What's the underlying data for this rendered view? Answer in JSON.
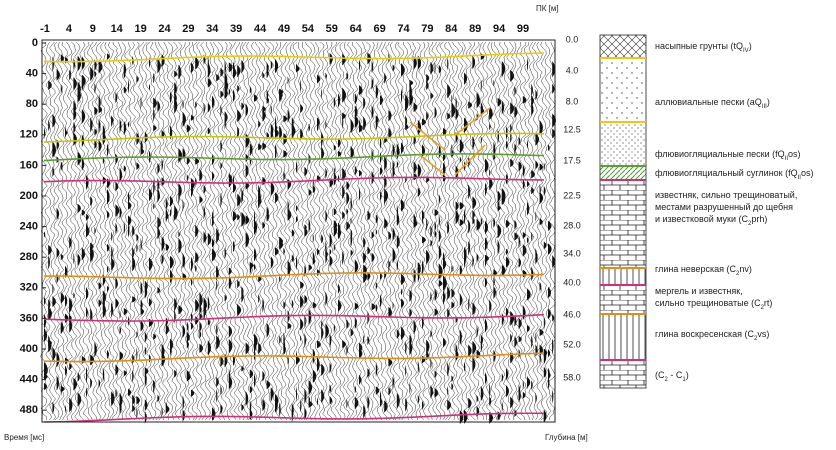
{
  "section": {
    "top_axis": {
      "label": "ПК [м]",
      "ticks": [
        "-1",
        "4",
        "9",
        "14",
        "19",
        "24",
        "29",
        "34",
        "39",
        "44",
        "49",
        "54",
        "59",
        "64",
        "69",
        "74",
        "79",
        "84",
        "89",
        "94",
        "99"
      ]
    },
    "time_axis": {
      "label": "Время [мс]",
      "ticks": [
        "0",
        "40",
        "80",
        "120",
        "160",
        "200",
        "240",
        "280",
        "320",
        "360",
        "400",
        "440",
        "480"
      ]
    },
    "depth_axis": {
      "label": "Глубина [м]",
      "ticks": [
        "0.0",
        "4.0",
        "8.0",
        "12.5",
        "17.5",
        "22.5",
        "28.0",
        "34.0",
        "40.0",
        "46.0",
        "52.0",
        "58.0"
      ]
    }
  },
  "legend": [
    {
      "parts": [
        {
          "t": "насыпные грунты (tQ"
        },
        {
          "sub": "IV"
        },
        {
          "t": ")"
        }
      ]
    },
    {
      "parts": [
        {
          "t": "аллювиальные пески  (aQ"
        },
        {
          "sub": "III"
        },
        {
          "t": ")"
        }
      ]
    },
    {
      "parts": [
        {
          "t": "флювиогляциальные пески (fQ"
        },
        {
          "sub": "II"
        },
        {
          "t": "os"
        },
        {
          "t": ")"
        }
      ]
    },
    {
      "parts": [
        {
          "t": "флювиогляциальный суглинок (fQ"
        },
        {
          "sub": "II"
        },
        {
          "t": "os"
        },
        {
          "t": ")"
        }
      ]
    },
    {
      "parts": [
        {
          "t": "известняк, сильно трещиноватый,"
        },
        {
          "br": "местами разрушенный до щебня"
        },
        {
          "br": "и известковой муки (C"
        },
        {
          "sub": "2"
        },
        {
          "t": "prh)"
        }
      ]
    },
    {
      "parts": [
        {
          "t": "глина неверская (C"
        },
        {
          "sub": "2"
        },
        {
          "t": "nv)"
        }
      ]
    },
    {
      "parts": [
        {
          "t": "мергель и известняк,"
        },
        {
          "br": "сильно трещиноватые (C"
        },
        {
          "sub": "2"
        },
        {
          "t": "rt)"
        }
      ]
    },
    {
      "parts": [
        {
          "t": "глина воскресенская (C"
        },
        {
          "sub": "2"
        },
        {
          "t": "vs)"
        }
      ]
    },
    {
      "parts": [
        {
          "t": "(C"
        },
        {
          "sub": "2"
        },
        {
          "t": " - C"
        },
        {
          "sub": "1"
        },
        {
          "t": ")"
        }
      ]
    }
  ]
}
